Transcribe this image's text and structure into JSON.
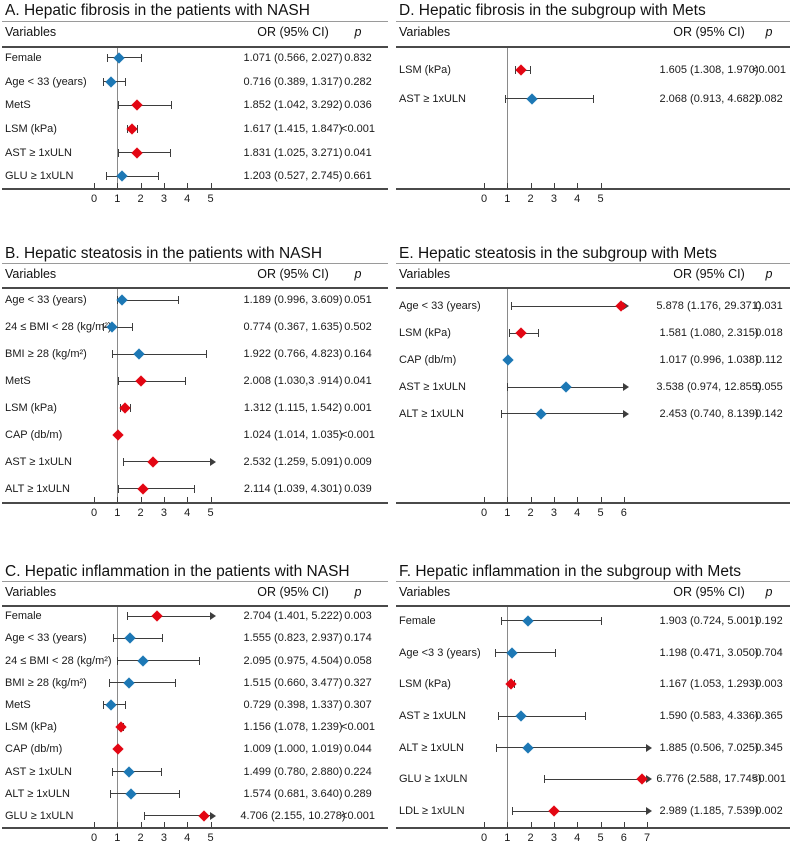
{
  "figure": {
    "columns": {
      "variables": "Variables",
      "or": "OR (95% CI)",
      "p": "p"
    },
    "colors": {
      "significant_marker": "#e30613",
      "nonsignificant_marker": "#1d78b5",
      "ci_line": "#3d3d3d",
      "reference_line": "#8a8a8a",
      "table_rule": "#4a4a4a",
      "text": "#1a1a1a",
      "background": "#ffffff"
    }
  },
  "chart_data": [
    {
      "type": "forest",
      "id": "A",
      "title": "A. Hepatic fibrosis in the patients with NASH",
      "xticks": [
        0,
        1,
        2,
        3,
        4,
        5
      ],
      "refline": 1,
      "legend_note": "red = significant, blue = non-significant",
      "rows": [
        {
          "label": "Female",
          "or": 1.071,
          "lo": 0.566,
          "hi": 2.027,
          "or_text": "1.071 (0.566, 2.027)",
          "p": "0.832",
          "sig": false,
          "arrow": false
        },
        {
          "label": "Age < 33 (years)",
          "or": 0.716,
          "lo": 0.389,
          "hi": 1.317,
          "or_text": "0.716 (0.389, 1.317)",
          "p": "0.282",
          "sig": false,
          "arrow": false
        },
        {
          "label": "MetS",
          "or": 1.852,
          "lo": 1.042,
          "hi": 3.292,
          "or_text": "1.852 (1.042, 3.292)",
          "p": "0.036",
          "sig": true,
          "arrow": false
        },
        {
          "label": "LSM (kPa)",
          "or": 1.617,
          "lo": 1.415,
          "hi": 1.847,
          "or_text": "1.617 (1.415, 1.847)",
          "p": "<0.001",
          "sig": true,
          "arrow": false
        },
        {
          "label": "AST ≥ 1xULN",
          "or": 1.831,
          "lo": 1.025,
          "hi": 3.271,
          "or_text": "1.831 (1.025, 3.271)",
          "p": "0.041",
          "sig": true,
          "arrow": false
        },
        {
          "label": "GLU ≥ 1xULN",
          "or": 1.203,
          "lo": 0.527,
          "hi": 2.745,
          "or_text": "1.203 (0.527, 2.745)",
          "p": "0.661",
          "sig": false,
          "arrow": false
        }
      ]
    },
    {
      "type": "forest",
      "id": "B",
      "title": "B. Hepatic steatosis in the patients with NASH",
      "xticks": [
        0,
        1,
        2,
        3,
        4,
        5
      ],
      "refline": 1,
      "rows": [
        {
          "label": "Age < 33 (years)",
          "or": 1.189,
          "lo": 0.996,
          "hi": 3.609,
          "or_text": "1.189 (0.996, 3.609)",
          "p": "0.051",
          "sig": false,
          "arrow": false
        },
        {
          "label": "24 ≤ BMI < 28 (kg/m²)",
          "or": 0.774,
          "lo": 0.367,
          "hi": 1.635,
          "or_text": "0.774 (0.367, 1.635)",
          "p": "0.502",
          "sig": false,
          "arrow": false
        },
        {
          "label": "BMI ≥ 28 (kg/m²)",
          "or": 1.922,
          "lo": 0.766,
          "hi": 4.823,
          "or_text": "1.922 (0.766, 4.823)",
          "p": "0.164",
          "sig": false,
          "arrow": false
        },
        {
          "label": "MetS",
          "or": 2.008,
          "lo": 1.03,
          "hi": 3.914,
          "or_text": "2.008 (1.030,3 .914)",
          "p": "0.041",
          "sig": true,
          "arrow": false
        },
        {
          "label": "LSM (kPa)",
          "or": 1.312,
          "lo": 1.115,
          "hi": 1.542,
          "or_text": "1.312 (1.115, 1.542)",
          "p": "0.001",
          "sig": true,
          "arrow": false
        },
        {
          "label": "CAP (db/m)",
          "or": 1.024,
          "lo": 1.014,
          "hi": 1.035,
          "or_text": "1.024 (1.014, 1.035)",
          "p": "<0.001",
          "sig": true,
          "arrow": false
        },
        {
          "label": "AST ≥ 1xULN",
          "or": 2.532,
          "lo": 1.259,
          "hi": 5.091,
          "or_text": "2.532 (1.259, 5.091)",
          "p": "0.009",
          "sig": true,
          "arrow": true
        },
        {
          "label": "ALT ≥ 1xULN",
          "or": 2.114,
          "lo": 1.039,
          "hi": 4.301,
          "or_text": "2.114 (1.039, 4.301)",
          "p": "0.039",
          "sig": true,
          "arrow": false
        }
      ]
    },
    {
      "type": "forest",
      "id": "C",
      "title": "C. Hepatic inflammation in the patients with NASH",
      "xticks": [
        0,
        1,
        2,
        3,
        4,
        5
      ],
      "refline": 1,
      "rows": [
        {
          "label": "Female",
          "or": 2.704,
          "lo": 1.401,
          "hi": 5.222,
          "or_text": "2.704 (1.401, 5.222)",
          "p": "0.003",
          "sig": true,
          "arrow": true
        },
        {
          "label": "Age < 33 (years)",
          "or": 1.555,
          "lo": 0.823,
          "hi": 2.937,
          "or_text": "1.555 (0.823, 2.937)",
          "p": "0.174",
          "sig": false,
          "arrow": false
        },
        {
          "label": "24 ≤ BMI < 28 (kg/m²)",
          "or": 2.095,
          "lo": 0.975,
          "hi": 4.504,
          "or_text": "2.095 (0.975, 4.504)",
          "p": "0.058",
          "sig": false,
          "arrow": false
        },
        {
          "label": "BMI ≥ 28 (kg/m²)",
          "or": 1.515,
          "lo": 0.66,
          "hi": 3.477,
          "or_text": "1.515 (0.660, 3.477)",
          "p": "0.327",
          "sig": false,
          "arrow": false
        },
        {
          "label": "MetS",
          "or": 0.729,
          "lo": 0.398,
          "hi": 1.337,
          "or_text": "0.729 (0.398, 1.337)",
          "p": "0.307",
          "sig": false,
          "arrow": false
        },
        {
          "label": "LSM (kPa)",
          "or": 1.156,
          "lo": 1.078,
          "hi": 1.239,
          "or_text": "1.156 (1.078, 1.239)",
          "p": "<0.001",
          "sig": true,
          "arrow": false
        },
        {
          "label": "CAP (db/m)",
          "or": 1.009,
          "lo": 1.0,
          "hi": 1.019,
          "or_text": "1.009 (1.000, 1.019)",
          "p": "0.044",
          "sig": true,
          "arrow": false
        },
        {
          "label": "AST ≥ 1xULN",
          "or": 1.499,
          "lo": 0.78,
          "hi": 2.88,
          "or_text": "1.499 (0.780, 2.880)",
          "p": "0.224",
          "sig": false,
          "arrow": false
        },
        {
          "label": "ALT ≥ 1xULN",
          "or": 1.574,
          "lo": 0.681,
          "hi": 3.64,
          "or_text": "1.574 (0.681, 3.640)",
          "p": "0.289",
          "sig": false,
          "arrow": false
        },
        {
          "label": "GLU ≥ 1xULN",
          "or": 4.706,
          "lo": 2.155,
          "hi": 10.278,
          "or_text": "4.706 (2.155, 10.278)",
          "p": "<0.001",
          "sig": true,
          "arrow": true
        }
      ]
    },
    {
      "type": "forest",
      "id": "D",
      "title": "D. Hepatic fibrosis in the subgroup with Mets",
      "xticks": [
        0,
        1,
        2,
        3,
        4,
        5
      ],
      "refline": 1,
      "rows": [
        {
          "label": "LSM (kPa)",
          "or": 1.605,
          "lo": 1.308,
          "hi": 1.97,
          "or_text": "1.605 (1.308, 1.970)",
          "p": "<0.001",
          "sig": true,
          "arrow": false
        },
        {
          "label": "AST ≥ 1xULN",
          "or": 2.068,
          "lo": 0.913,
          "hi": 4.682,
          "or_text": "2.068 (0.913, 4.682)",
          "p": "0.082",
          "sig": false,
          "arrow": false
        }
      ]
    },
    {
      "type": "forest",
      "id": "E",
      "title": "E. Hepatic steatosis in the subgroup with Mets",
      "xticks": [
        0,
        1,
        2,
        3,
        4,
        5,
        6
      ],
      "refline": 1,
      "rows": [
        {
          "label": "Age < 33 (years)",
          "or": 5.878,
          "lo": 1.176,
          "hi": 29.371,
          "or_text": "5.878 (1.176, 29.371)",
          "p": "0.031",
          "sig": true,
          "arrow": true
        },
        {
          "label": "LSM (kPa)",
          "or": 1.581,
          "lo": 1.08,
          "hi": 2.315,
          "or_text": "1.581 (1.080, 2.315)",
          "p": "0.018",
          "sig": true,
          "arrow": false
        },
        {
          "label": "CAP (db/m)",
          "or": 1.017,
          "lo": 0.996,
          "hi": 1.038,
          "or_text": "1.017 (0.996, 1.038)",
          "p": "0.112",
          "sig": false,
          "arrow": false
        },
        {
          "label": "AST ≥ 1xULN",
          "or": 3.538,
          "lo": 0.974,
          "hi": 12.855,
          "or_text": "3.538 (0.974, 12.855)",
          "p": "0.055",
          "sig": false,
          "arrow": true
        },
        {
          "label": "ALT ≥ 1xULN",
          "or": 2.453,
          "lo": 0.74,
          "hi": 8.139,
          "or_text": "2.453 (0.740, 8.139)",
          "p": "0.142",
          "sig": false,
          "arrow": true
        }
      ]
    },
    {
      "type": "forest",
      "id": "F",
      "title": "F. Hepatic inflammation in the subgroup with Mets",
      "xticks": [
        0,
        1,
        2,
        3,
        4,
        5,
        6,
        7
      ],
      "refline": 1,
      "rows": [
        {
          "label": "Female",
          "or": 1.903,
          "lo": 0.724,
          "hi": 5.001,
          "or_text": "1.903 (0.724, 5.001)",
          "p": "0.192",
          "sig": false,
          "arrow": false
        },
        {
          "label": "Age <3 3 (years)",
          "or": 1.198,
          "lo": 0.471,
          "hi": 3.05,
          "or_text": "1.198 (0.471, 3.050)",
          "p": "0.704",
          "sig": false,
          "arrow": false
        },
        {
          "label": "LSM (kPa)",
          "or": 1.167,
          "lo": 1.053,
          "hi": 1.293,
          "or_text": "1.167 (1.053, 1.293)",
          "p": "0.003",
          "sig": true,
          "arrow": false
        },
        {
          "label": "AST ≥ 1xULN",
          "or": 1.59,
          "lo": 0.583,
          "hi": 4.336,
          "or_text": "1.590 (0.583, 4.336)",
          "p": "0.365",
          "sig": false,
          "arrow": false
        },
        {
          "label": "ALT ≥ 1xULN",
          "or": 1.885,
          "lo": 0.506,
          "hi": 7.025,
          "or_text": "1.885 (0.506, 7.025)",
          "p": "0.345",
          "sig": false,
          "arrow": true
        },
        {
          "label": "GLU ≥ 1xULN",
          "or": 6.776,
          "lo": 2.588,
          "hi": 17.745,
          "or_text": "6.776 (2.588, 17.745)",
          "p": "<0.001",
          "sig": true,
          "arrow": true
        },
        {
          "label": "LDL ≥ 1xULN",
          "or": 2.989,
          "lo": 1.185,
          "hi": 7.539,
          "or_text": "2.989 (1.185, 7.539)",
          "p": "0.002",
          "sig": true,
          "arrow": true
        }
      ]
    }
  ]
}
